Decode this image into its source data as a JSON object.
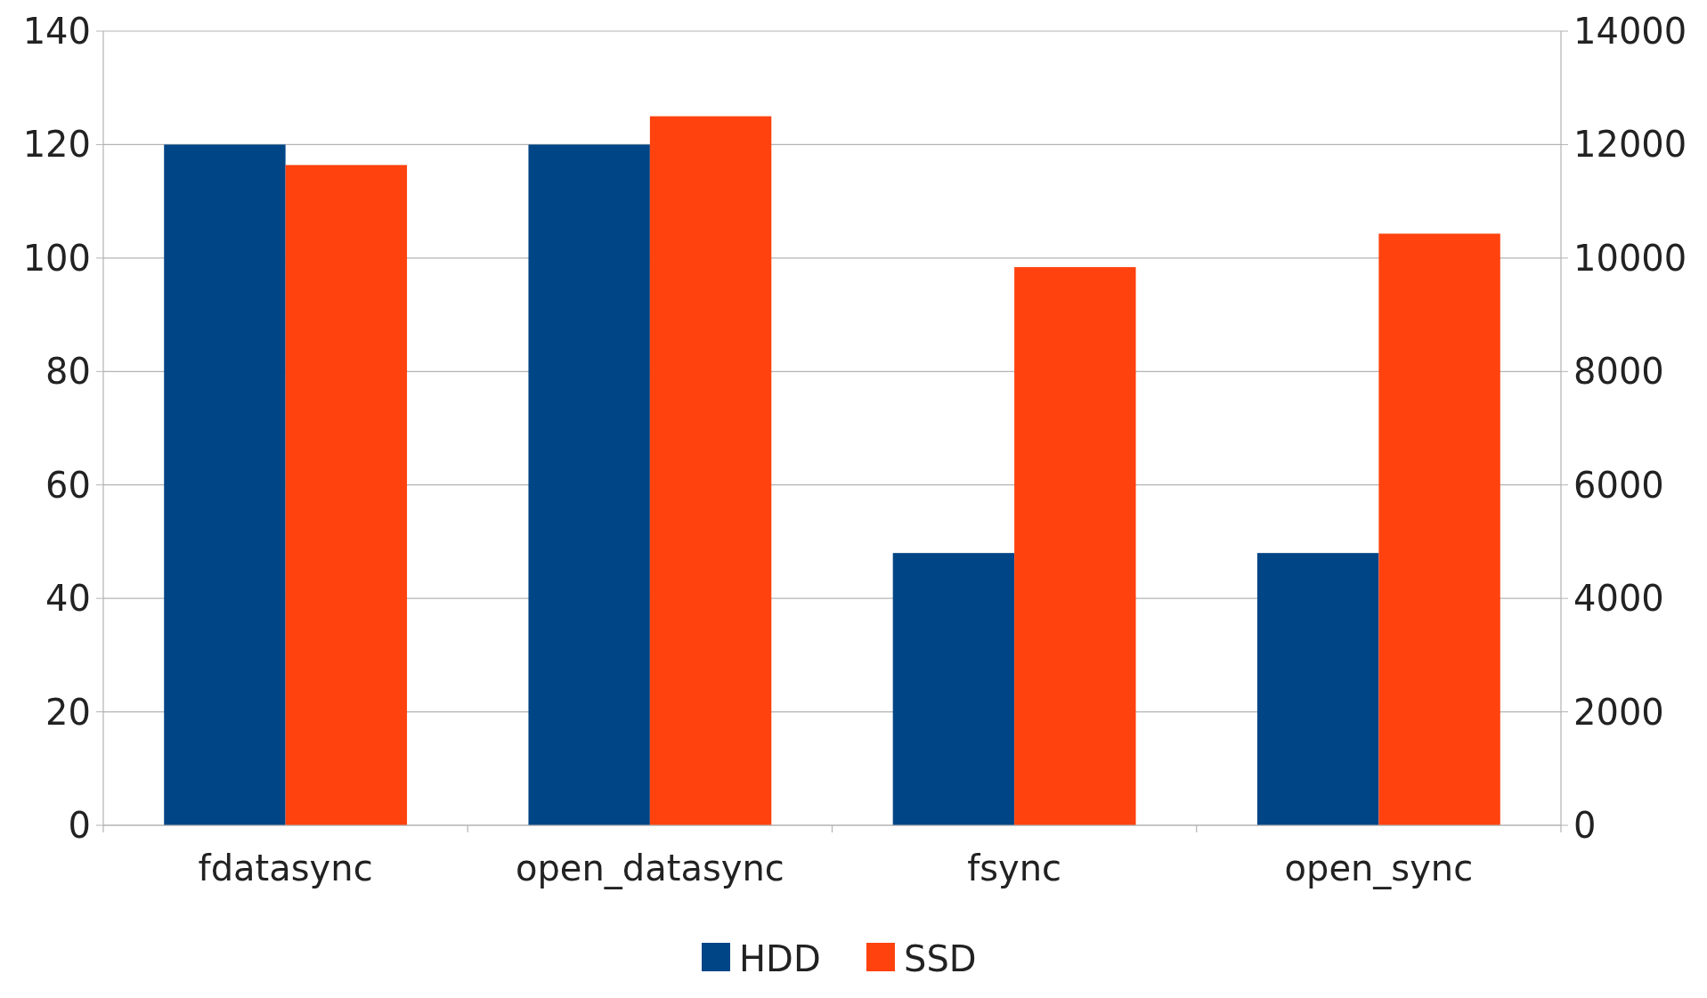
{
  "chart_data": {
    "type": "bar",
    "categories": [
      "fdatasync",
      "open_datasync",
      "fsync",
      "open_sync"
    ],
    "series": [
      {
        "name": "HDD",
        "color": "#004586",
        "values": [
          120,
          120,
          48,
          48
        ]
      },
      {
        "name": "SSD",
        "color": "#ff420e",
        "values": [
          11640,
          12500,
          9840,
          10430
        ],
        "axis": "y2"
      }
    ],
    "ylim": [
      0,
      140
    ],
    "yticks": [
      0,
      20,
      40,
      60,
      80,
      100,
      120,
      140
    ],
    "y2lim": [
      0,
      14000
    ],
    "y2ticks": [
      0,
      2000,
      4000,
      6000,
      8000,
      10000,
      12000,
      14000
    ],
    "grid": "y",
    "legend": "bottom"
  }
}
